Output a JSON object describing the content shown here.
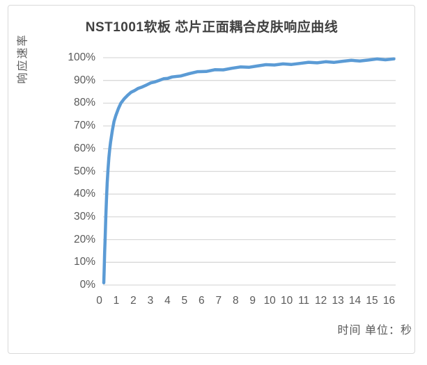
{
  "chart_data": {
    "type": "line",
    "title": "NST1001软板 芯片正面耦合皮肤响应曲线",
    "ylabel": "响应速率",
    "xlabel": "时间 单位：秒",
    "legend": "none",
    "grid": "horizontal-only",
    "ylim": [
      0,
      100
    ],
    "xlim": [
      0,
      17
    ],
    "y_tick_labels": [
      "0%",
      "10%",
      "20%",
      "30%",
      "40%",
      "50%",
      "60%",
      "70%",
      "80%",
      "90%",
      "100%"
    ],
    "x_tick_labels": [
      "0",
      "1",
      "2",
      "3",
      "4",
      "5",
      "6",
      "7",
      "8",
      "9",
      "10",
      "10",
      "11",
      "12",
      "13",
      "14",
      "15",
      "16"
    ],
    "series": [
      {
        "name": "芯片正面耦合皮肤响应",
        "color": "#5B9BD5",
        "points_time_s_vs_response_pct": [
          [
            0,
            1
          ],
          [
            0.02,
            6
          ],
          [
            0.05,
            14
          ],
          [
            0.08,
            21
          ],
          [
            0.12,
            30
          ],
          [
            0.16,
            38
          ],
          [
            0.2,
            45
          ],
          [
            0.25,
            51
          ],
          [
            0.3,
            56
          ],
          [
            0.35,
            60
          ],
          [
            0.4,
            63
          ],
          [
            0.5,
            68
          ],
          [
            0.6,
            72
          ],
          [
            0.7,
            74.5
          ],
          [
            0.85,
            77.5
          ],
          [
            1,
            80
          ],
          [
            1.2,
            82
          ],
          [
            1.4,
            83.5
          ],
          [
            1.6,
            84.7
          ],
          [
            1.8,
            85.6
          ],
          [
            2,
            86.4
          ],
          [
            2.25,
            87.3
          ],
          [
            2.5,
            88
          ],
          [
            2.75,
            88.8
          ],
          [
            3,
            89.5
          ],
          [
            3.25,
            90
          ],
          [
            3.5,
            90.5
          ],
          [
            3.75,
            91
          ],
          [
            4,
            91.4
          ],
          [
            4.5,
            92.2
          ],
          [
            5,
            93
          ],
          [
            5.5,
            93.6
          ],
          [
            6,
            94.1
          ],
          [
            6.5,
            94.6
          ],
          [
            7,
            95
          ],
          [
            7.5,
            95.4
          ],
          [
            8,
            95.7
          ],
          [
            8.5,
            96
          ],
          [
            9,
            96.3
          ],
          [
            9.5,
            96.6
          ],
          [
            10,
            96.9
          ],
          [
            10.5,
            97.1
          ],
          [
            11,
            97.3
          ],
          [
            11.5,
            97.5
          ],
          [
            12,
            97.7
          ],
          [
            12.5,
            97.9
          ],
          [
            13,
            98.1
          ],
          [
            13.5,
            98.3
          ],
          [
            14,
            98.5
          ],
          [
            14.5,
            98.6
          ],
          [
            15,
            98.8
          ],
          [
            15.5,
            98.9
          ],
          [
            16,
            99.1
          ],
          [
            16.5,
            99.2
          ],
          [
            17,
            99.3
          ]
        ]
      }
    ]
  },
  "colors": {
    "curve": "#5B9BD5",
    "gridline": "#D9D9D9",
    "axis_line": "#D9D9D9",
    "tick_text": "#595959",
    "title_text": "#404040",
    "frame_border": "#D9D9D9",
    "background": "#FFFFFF"
  }
}
